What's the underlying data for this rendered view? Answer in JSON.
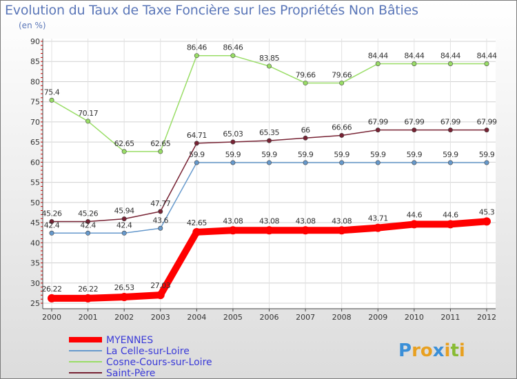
{
  "chart_data": {
    "type": "line",
    "title": "Evolution du Taux de Taxe Foncière sur les Propriétés Non Bâties",
    "subtitle": "(en %)",
    "xlabel": "",
    "ylabel": "",
    "ylim": [
      25,
      90
    ],
    "yticks": [
      25,
      30,
      35,
      40,
      45,
      50,
      55,
      60,
      65,
      70,
      75,
      80,
      85,
      90
    ],
    "grid": true,
    "legend_position": "bottom-left",
    "x": [
      2000,
      2001,
      2002,
      2003,
      2004,
      2005,
      2006,
      2007,
      2008,
      2009,
      2010,
      2011,
      2012
    ],
    "series": [
      {
        "name": "Cosne-Cours-sur-Loire",
        "color": "#99dd66",
        "values": [
          75.4,
          70.17,
          62.65,
          62.65,
          86.46,
          86.46,
          83.85,
          79.66,
          79.66,
          84.44,
          84.44,
          84.44,
          84.44
        ],
        "labels": [
          "75.4",
          "70.17",
          "62.65",
          "62.65",
          "86.46",
          "86.46",
          "83.85",
          "79.66",
          "79.66",
          "84.44",
          "84.44",
          "84.44",
          "84.44"
        ]
      },
      {
        "name": "Saint-Père",
        "color": "#772233",
        "values": [
          45.26,
          45.26,
          45.94,
          47.77,
          64.71,
          65.03,
          65.35,
          66,
          66.66,
          67.99,
          67.99,
          67.99,
          67.99
        ],
        "labels": [
          "45.26",
          "45.26",
          "45.94",
          "47.77",
          "64.71",
          "65.03",
          "65.35",
          "66",
          "66.66",
          "67.99",
          "67.99",
          "67.99",
          "67.99"
        ]
      },
      {
        "name": "La Celle-sur-Loire",
        "color": "#6699cc",
        "values": [
          42.4,
          42.4,
          42.4,
          43.6,
          59.9,
          59.9,
          59.9,
          59.9,
          59.9,
          59.9,
          59.9,
          59.9,
          59.9
        ],
        "labels": [
          "42.4",
          "42.4",
          "42.4",
          "43.6",
          "59.9",
          "59.9",
          "59.9",
          "59.9",
          "59.9",
          "59.9",
          "59.9",
          "59.9",
          "59.9"
        ]
      },
      {
        "name": "MYENNES",
        "color": "#ff0000",
        "values": [
          26.22,
          26.22,
          26.53,
          27.03,
          42.65,
          43.08,
          43.08,
          43.08,
          43.08,
          43.71,
          44.6,
          44.6,
          45.3
        ],
        "labels": [
          "26.22",
          "26.22",
          "26.53",
          "27.03",
          "42.65",
          "43.08",
          "43.08",
          "43.08",
          "43.08",
          "43.71",
          "44.6",
          "44.6",
          "45.3"
        ]
      }
    ],
    "legend": [
      "MYENNES",
      "La Celle-sur-Loire",
      "Cosne-Cours-sur-Loire",
      "Saint-Père"
    ]
  },
  "branding": {
    "logo_text": "Proxiti",
    "letters": [
      "P",
      "r",
      "o",
      "x",
      "i",
      "t",
      "i"
    ],
    "letter_colors": [
      "#3a8fd8",
      "#e8a020",
      "#e8a020",
      "#3a8fd8",
      "#e8a020",
      "#88bb33",
      "#e8a020"
    ]
  }
}
